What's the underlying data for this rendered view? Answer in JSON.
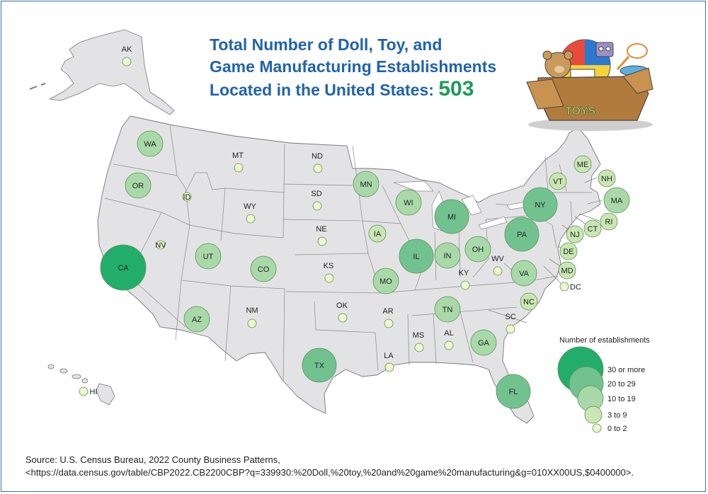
{
  "title": {
    "line1": "Total Number of Doll, Toy, and",
    "line2": "Game Manufacturing Establishments",
    "line3_prefix": "Located in the United States:",
    "total": "503"
  },
  "colors": {
    "state_fill": "#e3e3e5",
    "state_stroke": "#777777",
    "c30": "#22ae6a",
    "c20": "#72c290",
    "c10": "#a9d9a8",
    "c3": "#c9e7b3",
    "c0": "#eff7cc"
  },
  "legend": {
    "title": "Number of establishments",
    "items": [
      {
        "cat": "c30",
        "label": "30 or more"
      },
      {
        "cat": "c20",
        "label": "20 to 29"
      },
      {
        "cat": "c10",
        "label": "10 to 19"
      },
      {
        "cat": "c3",
        "label": "3 to 9"
      },
      {
        "cat": "c0",
        "label": "0 to 2"
      }
    ]
  },
  "states": [
    {
      "abbr": "AK",
      "cat": "c0"
    },
    {
      "abbr": "HI",
      "cat": "c0"
    },
    {
      "abbr": "WA",
      "cat": "c10"
    },
    {
      "abbr": "OR",
      "cat": "c10"
    },
    {
      "abbr": "CA",
      "cat": "c30"
    },
    {
      "abbr": "NV",
      "cat": "c0"
    },
    {
      "abbr": "ID",
      "cat": "c0"
    },
    {
      "abbr": "MT",
      "cat": "c0"
    },
    {
      "abbr": "WY",
      "cat": "c0"
    },
    {
      "abbr": "UT",
      "cat": "c10"
    },
    {
      "abbr": "CO",
      "cat": "c10"
    },
    {
      "abbr": "AZ",
      "cat": "c10"
    },
    {
      "abbr": "NM",
      "cat": "c0"
    },
    {
      "abbr": "ND",
      "cat": "c0"
    },
    {
      "abbr": "SD",
      "cat": "c0"
    },
    {
      "abbr": "NE",
      "cat": "c0"
    },
    {
      "abbr": "KS",
      "cat": "c0"
    },
    {
      "abbr": "OK",
      "cat": "c0"
    },
    {
      "abbr": "TX",
      "cat": "c20"
    },
    {
      "abbr": "MN",
      "cat": "c10"
    },
    {
      "abbr": "IA",
      "cat": "c3"
    },
    {
      "abbr": "MO",
      "cat": "c10"
    },
    {
      "abbr": "AR",
      "cat": "c0"
    },
    {
      "abbr": "LA",
      "cat": "c0"
    },
    {
      "abbr": "WI",
      "cat": "c10"
    },
    {
      "abbr": "IL",
      "cat": "c20"
    },
    {
      "abbr": "MI",
      "cat": "c20"
    },
    {
      "abbr": "IN",
      "cat": "c10"
    },
    {
      "abbr": "OH",
      "cat": "c10"
    },
    {
      "abbr": "KY",
      "cat": "c0"
    },
    {
      "abbr": "TN",
      "cat": "c10"
    },
    {
      "abbr": "MS",
      "cat": "c0"
    },
    {
      "abbr": "AL",
      "cat": "c0"
    },
    {
      "abbr": "GA",
      "cat": "c10"
    },
    {
      "abbr": "FL",
      "cat": "c20"
    },
    {
      "abbr": "SC",
      "cat": "c0"
    },
    {
      "abbr": "NC",
      "cat": "c3"
    },
    {
      "abbr": "VA",
      "cat": "c10"
    },
    {
      "abbr": "WV",
      "cat": "c0"
    },
    {
      "abbr": "PA",
      "cat": "c20"
    },
    {
      "abbr": "NY",
      "cat": "c20"
    },
    {
      "abbr": "VT",
      "cat": "c3"
    },
    {
      "abbr": "ME",
      "cat": "c3"
    },
    {
      "abbr": "NH",
      "cat": "c3"
    },
    {
      "abbr": "MA",
      "cat": "c10"
    },
    {
      "abbr": "RI",
      "cat": "c3"
    },
    {
      "abbr": "CT",
      "cat": "c3"
    },
    {
      "abbr": "NJ",
      "cat": "c3"
    },
    {
      "abbr": "DE",
      "cat": "c3"
    },
    {
      "abbr": "MD",
      "cat": "c3"
    },
    {
      "abbr": "DC",
      "cat": "c0"
    }
  ],
  "illustration": {
    "box_label": "TOYS"
  },
  "source": {
    "line1": "Source: U.S. Census Bureau, 2022 County Business Patterns,",
    "line2": "<https://data.census.gov/table/CBP2022.CB2200CBP?q=339930:%20Doll,%20toy,%20and%20game%20manufacturing&g=010XX00US,$0400000>."
  }
}
